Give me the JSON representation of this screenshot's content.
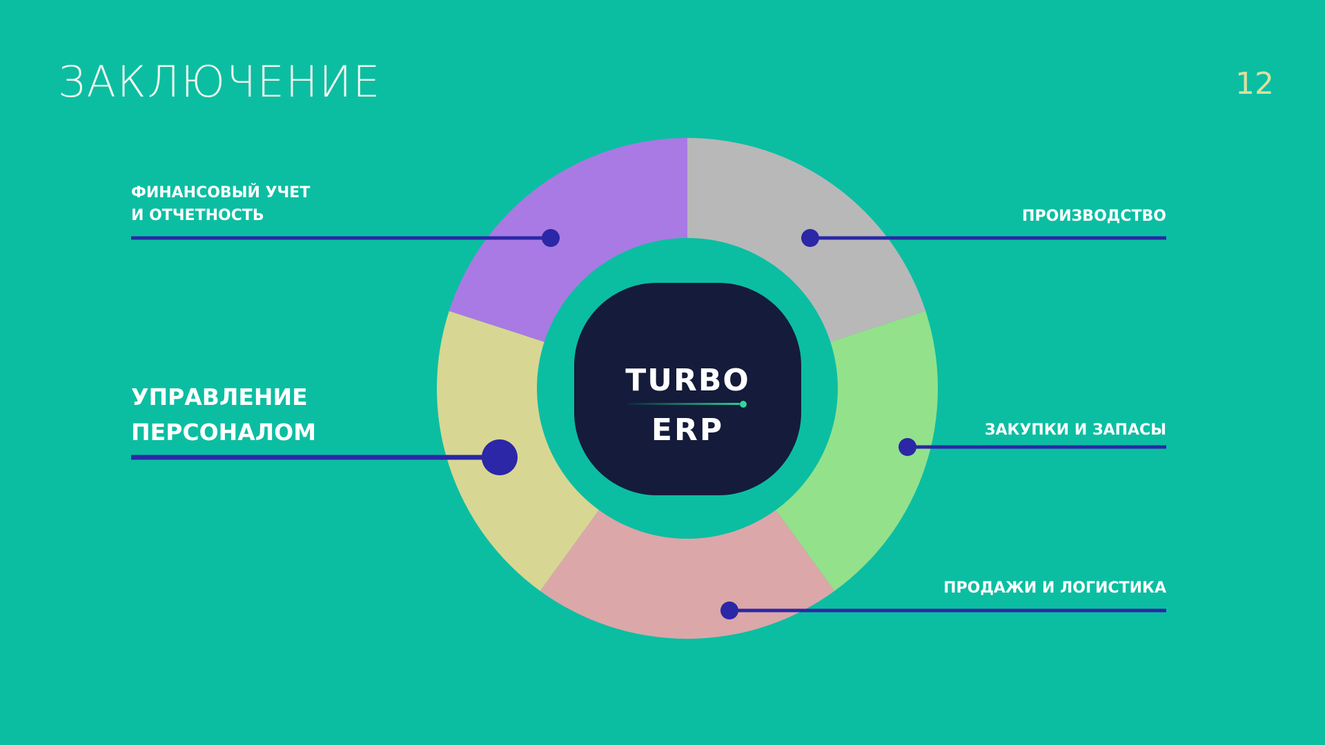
{
  "slide": {
    "title": "ЗАКЛЮЧЕНИЕ",
    "page_number": "12",
    "background": "#0bbea2"
  },
  "logo": {
    "line1": "TURBO",
    "line2": "ERP",
    "background": "#151b3b"
  },
  "segments": [
    {
      "id": "production",
      "label": "ПРОИЗВОДСТВО",
      "color": "#b8b8b8"
    },
    {
      "id": "purchasing",
      "label": "ЗАКУПКИ И ЗАПАСЫ",
      "color": "#93e18b"
    },
    {
      "id": "sales",
      "label": "ПРОДАЖИ И ЛОГИСТИКА",
      "color": "#dca7a8"
    },
    {
      "id": "hr",
      "label_line1": "УПРАВЛЕНИЕ",
      "label_line2": "ПЕРСОНАЛОМ",
      "color": "#d8d693",
      "highlighted": true
    },
    {
      "id": "finance",
      "label_line1": "ФИНАНСОВЫЙ УЧЕТ",
      "label_line2": "И ОТЧЕТНОСТЬ",
      "color": "#a97ae3"
    }
  ],
  "connector_color": "#2b27a6"
}
